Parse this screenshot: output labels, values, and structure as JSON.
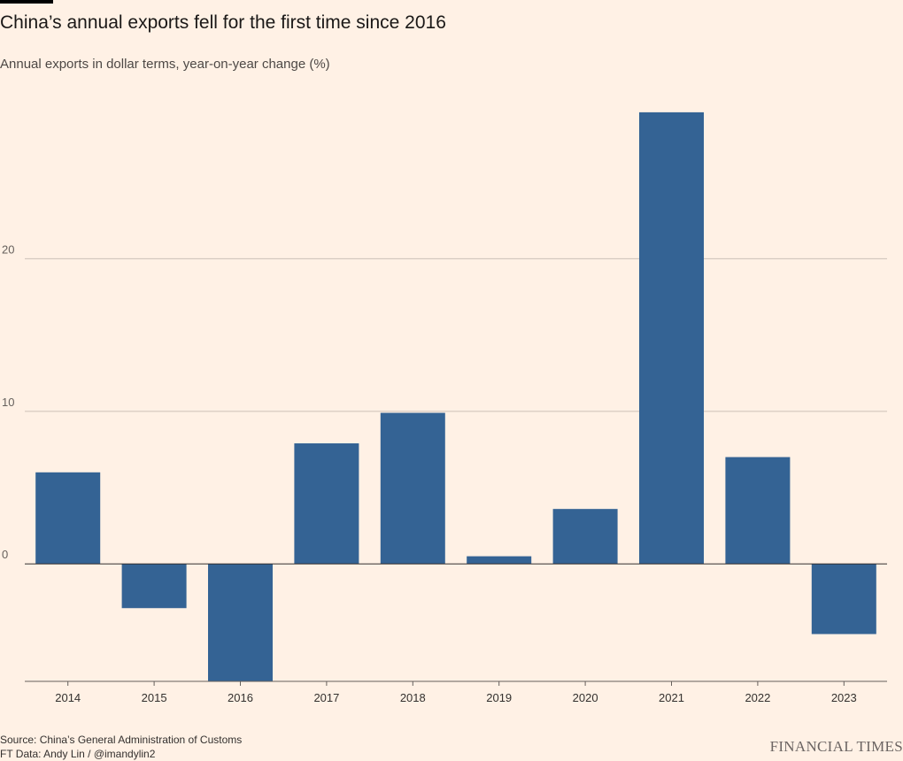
{
  "header": {
    "title": "China’s annual exports fell for the first time since 2016",
    "subtitle": "Annual exports in dollar terms, year-on-year change (%)"
  },
  "footer": {
    "source": "Source: China’s General Administration of Customs",
    "credit": "FT Data: Andy Lin / @imandylin2",
    "brand": "FINANCIAL TIMES"
  },
  "colors": {
    "background": "#fff1e5",
    "bar": "#346394",
    "gridline": "#ccc1b7",
    "baseline": "#33302e"
  },
  "chart_data": {
    "type": "bar",
    "title": "China’s annual exports fell for the first time since 2016",
    "subtitle": "Annual exports in dollar terms, year-on-year change (%)",
    "categories": [
      "2014",
      "2015",
      "2016",
      "2017",
      "2018",
      "2019",
      "2020",
      "2021",
      "2022",
      "2023"
    ],
    "values": [
      6.0,
      -2.9,
      -7.7,
      7.9,
      9.9,
      0.5,
      3.6,
      29.6,
      7.0,
      -4.6
    ],
    "xlabel": "",
    "ylabel": "",
    "ylim": [
      -7.7,
      30
    ],
    "yticks": [
      0,
      10,
      20
    ],
    "grid": true,
    "legend": "none"
  }
}
